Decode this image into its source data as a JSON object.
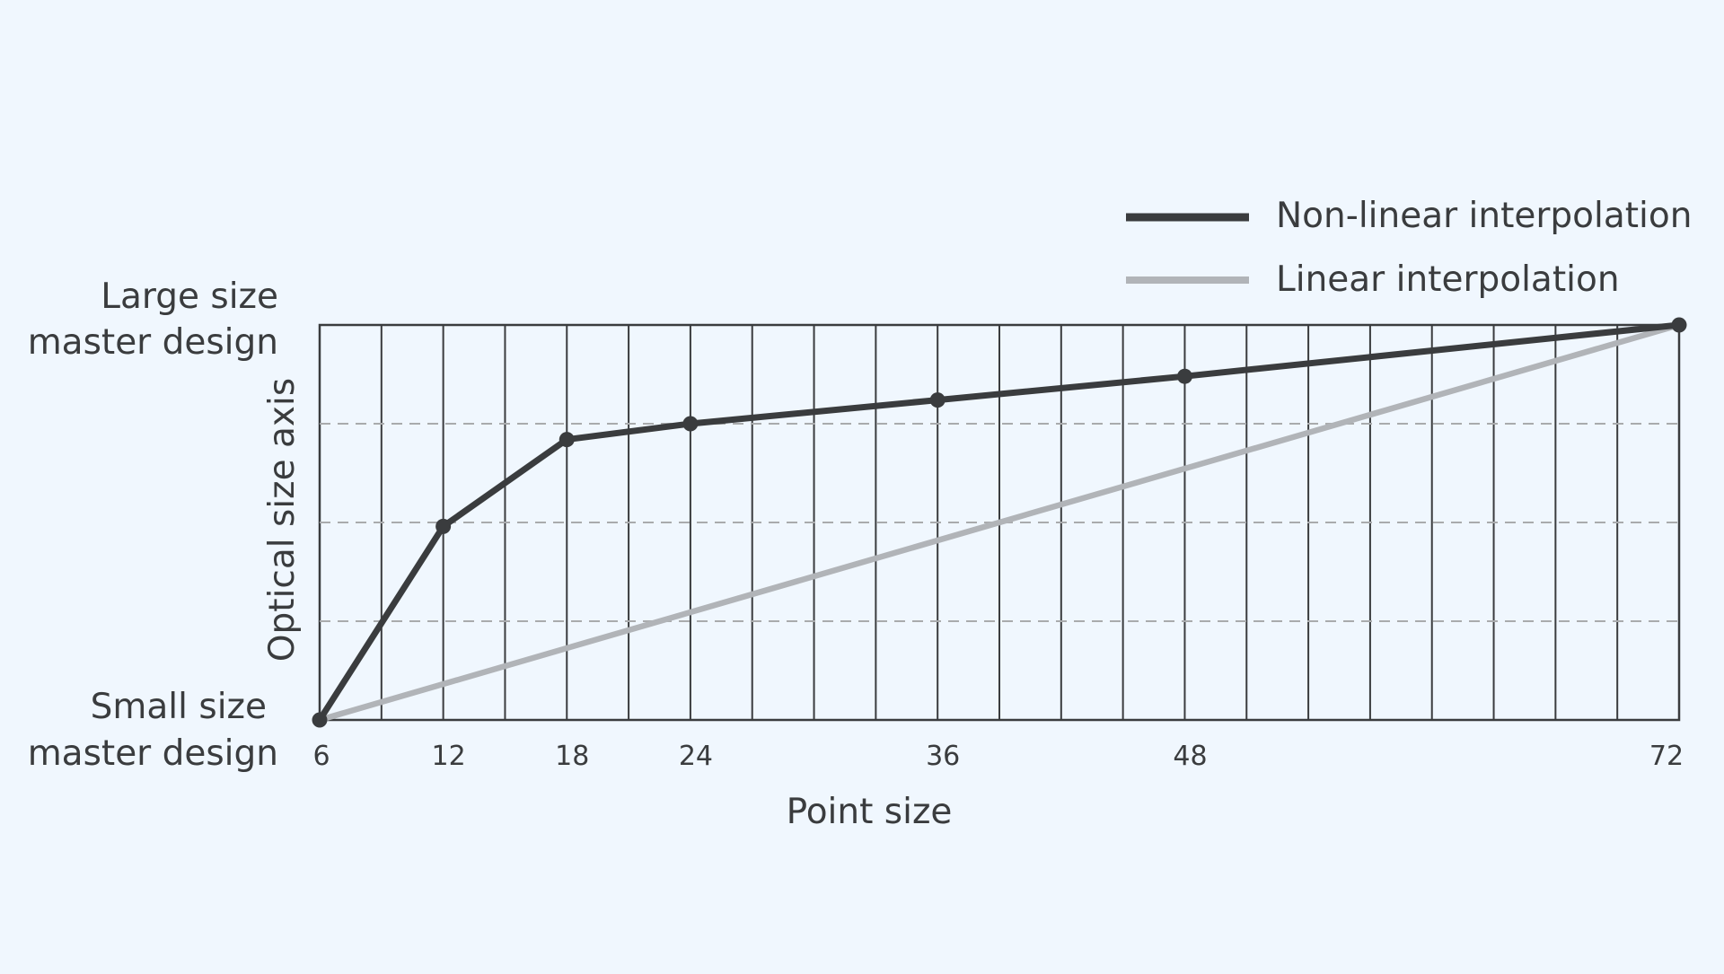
{
  "chart_data": {
    "type": "line",
    "title": "",
    "xlabel": "Point size",
    "ylabel": "Optical size axis",
    "y_top_label": [
      "Large size",
      "master design"
    ],
    "y_bottom_label": [
      "Small size",
      "master design"
    ],
    "x_ticks": [
      6,
      12,
      18,
      24,
      36,
      48,
      72
    ],
    "xlim": [
      6,
      72
    ],
    "ylim": [
      0,
      1
    ],
    "grid": {
      "vertical_lines": "every 3 point sizes",
      "horizontal_dashed": [
        0.25,
        0.5,
        0.75
      ]
    },
    "legend_position": "top-right",
    "series": [
      {
        "name": "Non-linear interpolation",
        "color": "#3a3c3e",
        "markers": true,
        "x": [
          6,
          12,
          18,
          24,
          36,
          48,
          72
        ],
        "y": [
          0,
          0.49,
          0.71,
          0.75,
          0.81,
          0.87,
          1.0
        ]
      },
      {
        "name": "Linear interpolation",
        "color": "#b1b4b8",
        "markers": false,
        "x": [
          6,
          72
        ],
        "y": [
          0,
          1.0
        ]
      }
    ]
  },
  "colors": {
    "background": "#f0f7fe",
    "axis": "#3a3c3e",
    "dashed_grid": "#a9abad"
  }
}
